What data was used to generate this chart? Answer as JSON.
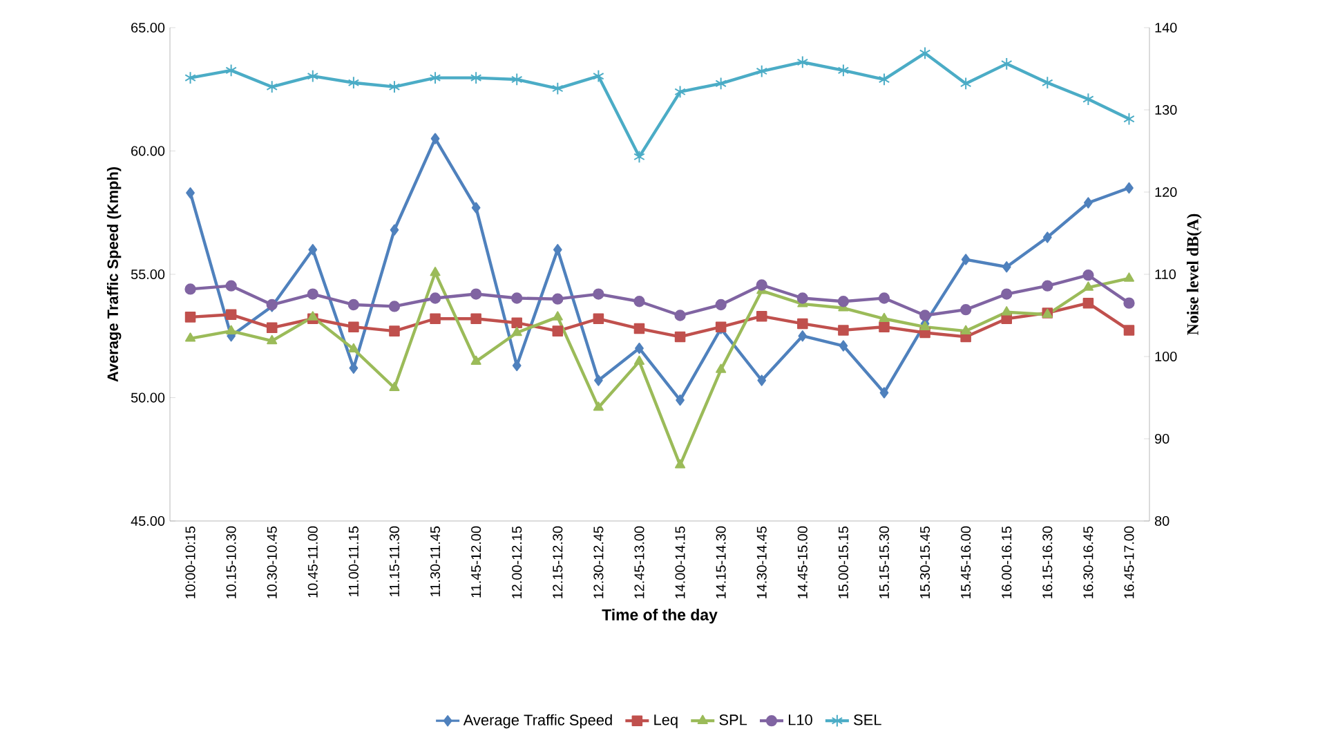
{
  "chart_data": {
    "type": "line",
    "xlabel": "Time  of the day",
    "ylabel": "Average Traffic Speed (Kmph)",
    "y2label": "Noise level  dB(A)",
    "categories": [
      "10:00-10:15",
      "10.15-10.30",
      "10.30-10.45",
      "10.45-11.00",
      "11.00-11.15",
      "11.15-11.30",
      "11.30-11.45",
      "11.45-12.00",
      "12.00-12.15",
      "12.15-12.30",
      "12.30-12.45",
      "12.45-13.00",
      "14.00-14.15",
      "14.15-14.30",
      "14.30-14.45",
      "14.45-15.00",
      "15.00-15.15",
      "15.15-15.30",
      "15.30-15.45",
      "15.45-16.00",
      "16.00-16.15",
      "16.15-16.30",
      "16.30-16.45",
      "16.45-17.00"
    ],
    "ylim": [
      45,
      65
    ],
    "yticks": [
      {
        "value": 45,
        "label": "45.00"
      },
      {
        "value": 50,
        "label": "50.00"
      },
      {
        "value": 55,
        "label": "55.00"
      },
      {
        "value": 60,
        "label": "60.00"
      },
      {
        "value": 65,
        "label": "65.00"
      }
    ],
    "y2lim": [
      80,
      140
    ],
    "y2ticks": [
      80,
      90,
      100,
      110,
      120,
      130,
      140
    ],
    "grid": false,
    "legend": "bottom",
    "line_style": "solid",
    "series": [
      {
        "name": "Average Traffic Speed",
        "color": "#4f81bd",
        "marker": "diamond",
        "values": [
          58.3,
          52.5,
          53.7,
          56.0,
          51.2,
          56.8,
          60.5,
          57.7,
          51.3,
          56.0,
          50.7,
          52.0,
          49.9,
          52.8,
          50.7,
          52.5,
          52.1,
          50.2,
          53.0,
          55.6,
          55.3,
          56.5,
          57.9,
          58.5
        ]
      },
      {
        "name": "Leq",
        "color": "#c0504d",
        "marker": "square",
        "axis": "y2",
        "values": [
          104.8,
          105.1,
          103.5,
          104.6,
          103.6,
          103.1,
          104.6,
          104.6,
          104.1,
          103.1,
          104.6,
          103.4,
          102.4,
          103.6,
          104.9,
          104.0,
          103.2,
          103.6,
          102.9,
          102.4,
          104.6,
          105.3,
          106.5,
          103.2
        ]
      },
      {
        "name": "SPL",
        "color": "#9bbb59",
        "marker": "triangle",
        "axis": "y2",
        "values": [
          102.2,
          103.1,
          101.9,
          104.8,
          100.9,
          96.2,
          110.2,
          99.4,
          102.9,
          104.8,
          93.8,
          99.4,
          86.8,
          98.4,
          108.0,
          106.4,
          105.9,
          104.6,
          103.6,
          103.1,
          105.4,
          105.1,
          108.4,
          109.5
        ]
      },
      {
        "name": "L10",
        "color": "#8064a2",
        "marker": "circle",
        "axis": "y2",
        "values": [
          108.2,
          108.6,
          106.3,
          107.6,
          106.3,
          106.1,
          107.1,
          107.6,
          107.1,
          107.0,
          107.6,
          106.7,
          105.0,
          106.3,
          108.7,
          107.1,
          106.7,
          107.1,
          105.0,
          105.7,
          107.6,
          108.6,
          109.9,
          106.5
        ]
      },
      {
        "name": "SEL",
        "color": "#4bacc6",
        "marker": "cross",
        "axis": "y2",
        "values": [
          133.9,
          134.8,
          132.8,
          134.1,
          133.3,
          132.8,
          133.9,
          133.9,
          133.7,
          132.6,
          134.1,
          124.3,
          132.2,
          133.2,
          134.7,
          135.8,
          134.8,
          133.7,
          136.9,
          133.2,
          135.6,
          133.3,
          131.3,
          128.9
        ]
      }
    ]
  }
}
